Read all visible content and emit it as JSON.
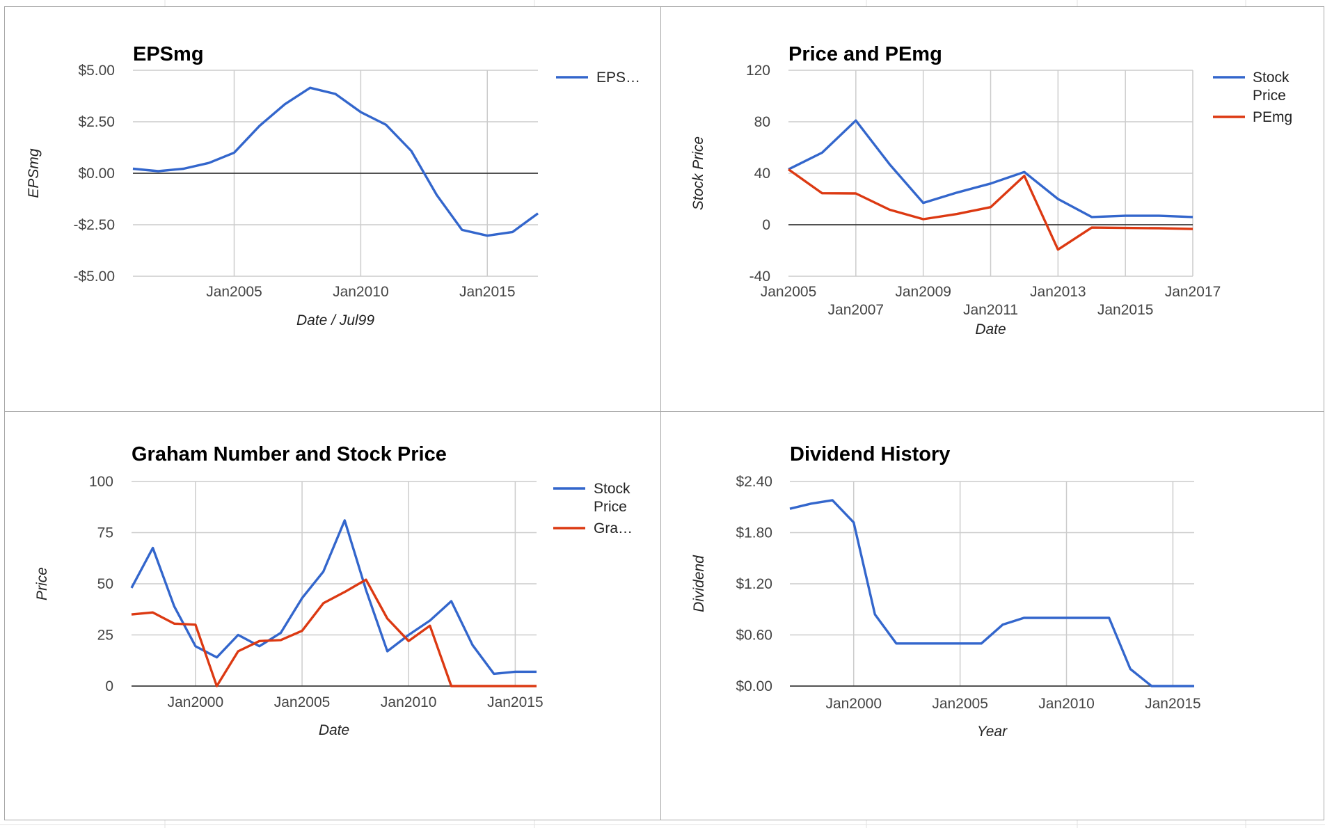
{
  "chart_data": [
    {
      "type": "line",
      "title": "EPSmg",
      "xlabel": "Date / Jul99",
      "ylabel": "EPSmg",
      "x_ticks": [
        "Jan2005",
        "Jan2010",
        "Jan2015"
      ],
      "y_ticks": [
        "$5.00",
        "$2.50",
        "$0.00",
        "-$2.50",
        "-$5.00"
      ],
      "ylim": [
        -5,
        5
      ],
      "xlim": [
        2001,
        2017
      ],
      "grid": true,
      "legend_position": "right",
      "series": [
        {
          "name": "EPS…",
          "color": "#3366cc",
          "x": [
            2001,
            2002,
            2003,
            2004,
            2005,
            2006,
            2007,
            2008,
            2009,
            2010,
            2011,
            2012,
            2013,
            2014,
            2015,
            2016,
            2017
          ],
          "values": [
            0.22,
            0.1,
            0.22,
            0.5,
            1.0,
            2.3,
            3.35,
            4.15,
            3.85,
            2.97,
            2.35,
            1.08,
            -1.05,
            -2.75,
            -3.03,
            -2.85,
            -1.95
          ]
        }
      ]
    },
    {
      "type": "line",
      "title": "Price and PEmg",
      "xlabel": "Date",
      "ylabel": "Stock Price",
      "x_ticks": [
        "Jan2005",
        "Jan2007",
        "Jan2009",
        "Jan2011",
        "Jan2013",
        "Jan2015",
        "Jan2017"
      ],
      "y_ticks": [
        "120",
        "80",
        "40",
        "0",
        "-40"
      ],
      "ylim": [
        -40,
        120
      ],
      "xlim": [
        2005,
        2017
      ],
      "grid": true,
      "legend_position": "right",
      "series": [
        {
          "name": "Stock Price",
          "color": "#3366cc",
          "x": [
            2005,
            2006,
            2007,
            2008,
            2009,
            2010,
            2011,
            2012,
            2013,
            2014,
            2015,
            2016,
            2017
          ],
          "values": [
            43,
            56,
            81,
            47,
            17,
            25,
            32,
            41,
            20,
            6,
            7,
            7,
            6
          ]
        },
        {
          "name": "PEmg",
          "color": "#dc3912",
          "x": [
            2005,
            2006,
            2007,
            2008,
            2009,
            2010,
            2011,
            2012,
            2013,
            2014,
            2015,
            2016,
            2017
          ],
          "values": [
            43,
            24.5,
            24.3,
            11.7,
            4.3,
            8.3,
            13.7,
            38,
            -19.3,
            -2.2,
            -2.5,
            -2.7,
            -3.3
          ]
        }
      ]
    },
    {
      "type": "line",
      "title": "Graham Number and Stock Price",
      "xlabel": "Date",
      "ylabel": "Price",
      "x_ticks": [
        "Jan2000",
        "Jan2005",
        "Jan2010",
        "Jan2015"
      ],
      "y_ticks": [
        "100",
        "75",
        "50",
        "25",
        "0"
      ],
      "ylim": [
        0,
        100
      ],
      "xlim": [
        1997,
        2016
      ],
      "grid": true,
      "legend_position": "right",
      "series": [
        {
          "name": "Stock Price",
          "color": "#3366cc",
          "x": [
            1997,
            1998,
            1999,
            2000,
            2001,
            2002,
            2003,
            2004,
            2005,
            2006,
            2007,
            2008,
            2009,
            2010,
            2011,
            2012,
            2013,
            2014,
            2015,
            2016
          ],
          "values": [
            48,
            67.5,
            39,
            19.5,
            14,
            25,
            19.5,
            26,
            43,
            56,
            81,
            47,
            17,
            25,
            32,
            41.5,
            20,
            6,
            7,
            7
          ]
        },
        {
          "name": "Gra…",
          "color": "#dc3912",
          "x": [
            1997,
            1998,
            1999,
            2000,
            2001,
            2002,
            2003,
            2004,
            2005,
            2006,
            2007,
            2008,
            2009,
            2010,
            2011,
            2012,
            2013,
            2014,
            2015,
            2016
          ],
          "values": [
            35,
            36,
            30.5,
            30,
            0,
            17,
            22,
            22.5,
            27,
            40.5,
            46,
            52,
            33,
            22,
            29.5,
            0,
            0,
            0,
            0,
            0
          ]
        }
      ]
    },
    {
      "type": "line",
      "title": "Dividend History",
      "xlabel": "Year",
      "ylabel": "Dividend",
      "x_ticks": [
        "Jan2000",
        "Jan2005",
        "Jan2010",
        "Jan2015"
      ],
      "y_ticks": [
        "$2.40",
        "$1.80",
        "$1.20",
        "$0.60",
        "$0.00"
      ],
      "ylim": [
        0,
        2.4
      ],
      "xlim": [
        1997,
        2016
      ],
      "grid": true,
      "legend_position": "none",
      "series": [
        {
          "name": "",
          "color": "#3366cc",
          "x": [
            1997,
            1998,
            1999,
            2000,
            2001,
            2002,
            2003,
            2004,
            2005,
            2006,
            2007,
            2008,
            2009,
            2010,
            2011,
            2012,
            2013,
            2014,
            2015,
            2016
          ],
          "values": [
            2.08,
            2.14,
            2.18,
            1.92,
            0.84,
            0.5,
            0.5,
            0.5,
            0.5,
            0.5,
            0.72,
            0.8,
            0.8,
            0.8,
            0.8,
            0.8,
            0.2,
            0,
            0,
            0
          ]
        }
      ]
    }
  ]
}
